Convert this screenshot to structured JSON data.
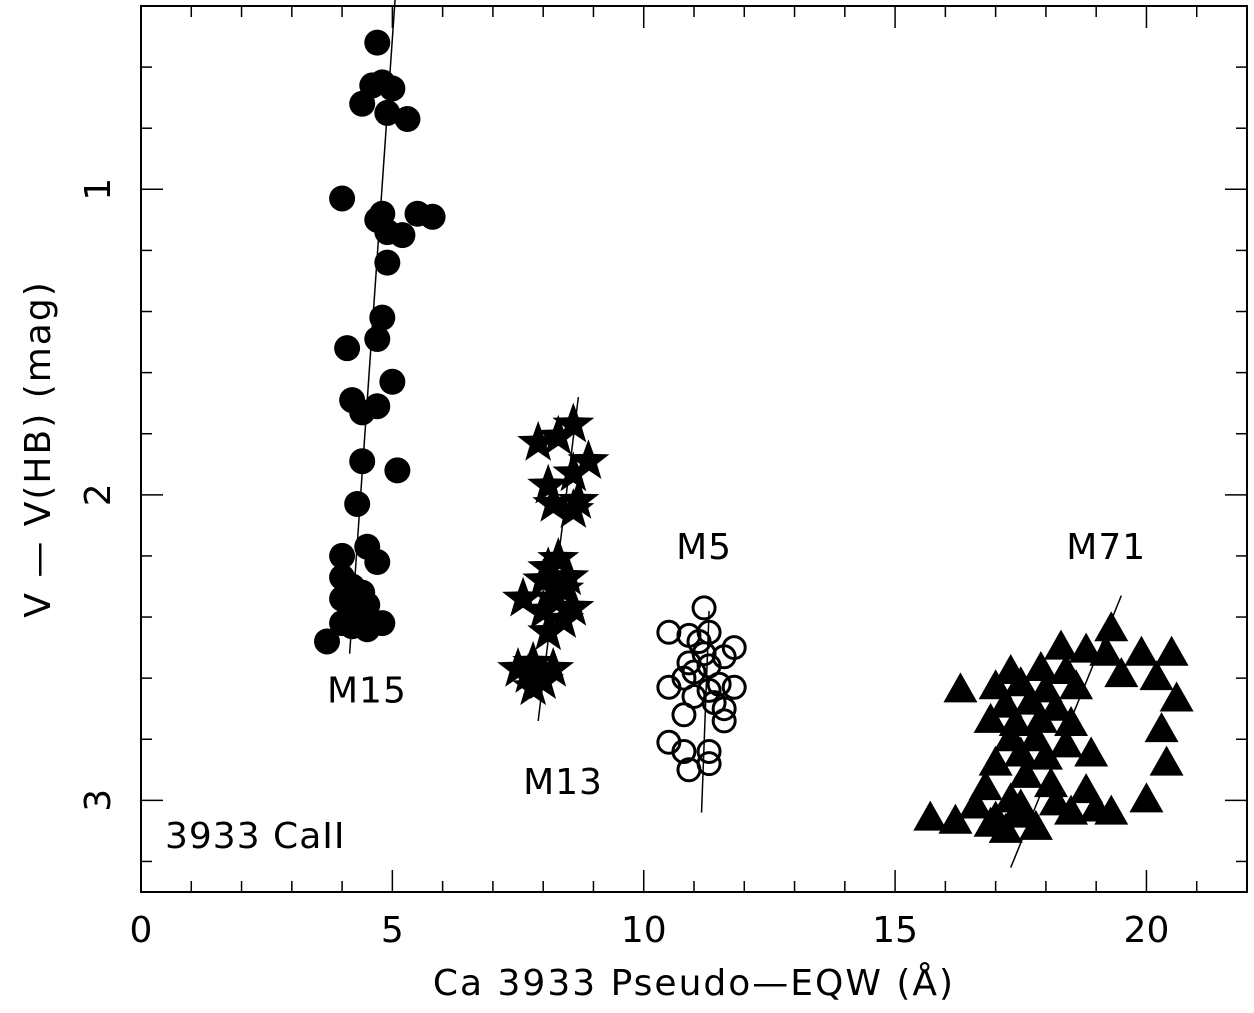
{
  "chart_data": {
    "type": "scatter",
    "xlabel": "Ca 3933 Pseudo—EQW (Å)",
    "ylabel": "V — V(HB) (mag)",
    "xlim": [
      0,
      22
    ],
    "ylim": [
      3.3,
      0.4
    ],
    "y_inverted": true,
    "x_ticks": [
      0,
      5,
      10,
      15,
      20
    ],
    "y_ticks": [
      1,
      2,
      3
    ],
    "panel_label": "3933 CaII",
    "series": [
      {
        "name": "M15",
        "marker": "filled-circle",
        "points": [
          [
            4.7,
            0.52
          ],
          [
            4.8,
            0.65
          ],
          [
            5.0,
            0.67
          ],
          [
            4.6,
            0.66
          ],
          [
            4.4,
            0.72
          ],
          [
            4.9,
            0.75
          ],
          [
            5.3,
            0.77
          ],
          [
            4.0,
            1.03
          ],
          [
            4.8,
            1.08
          ],
          [
            5.5,
            1.08
          ],
          [
            5.8,
            1.09
          ],
          [
            4.7,
            1.1
          ],
          [
            4.9,
            1.14
          ],
          [
            5.2,
            1.15
          ],
          [
            4.9,
            1.24
          ],
          [
            4.8,
            1.42
          ],
          [
            4.1,
            1.52
          ],
          [
            4.7,
            1.49
          ],
          [
            5.0,
            1.63
          ],
          [
            4.2,
            1.69
          ],
          [
            4.7,
            1.71
          ],
          [
            4.4,
            1.73
          ],
          [
            4.4,
            1.89
          ],
          [
            5.1,
            1.92
          ],
          [
            4.3,
            2.03
          ],
          [
            4.5,
            2.17
          ],
          [
            4.0,
            2.2
          ],
          [
            4.7,
            2.22
          ],
          [
            4.0,
            2.27
          ],
          [
            4.2,
            2.3
          ],
          [
            4.4,
            2.32
          ],
          [
            4.1,
            2.35
          ],
          [
            4.0,
            2.34
          ],
          [
            4.3,
            2.37
          ],
          [
            4.5,
            2.36
          ],
          [
            4.0,
            2.42
          ],
          [
            4.2,
            2.43
          ],
          [
            4.5,
            2.44
          ],
          [
            4.8,
            2.42
          ],
          [
            3.7,
            2.48
          ]
        ],
        "fit_line": [
          [
            4.15,
            2.52
          ],
          [
            5.1,
            0.27
          ]
        ]
      },
      {
        "name": "M13",
        "marker": "filled-star",
        "points": [
          [
            8.6,
            1.77
          ],
          [
            7.9,
            1.83
          ],
          [
            8.3,
            1.81
          ],
          [
            8.9,
            1.89
          ],
          [
            8.6,
            1.93
          ],
          [
            8.1,
            1.97
          ],
          [
            8.7,
            2.02
          ],
          [
            8.2,
            2.03
          ],
          [
            8.6,
            2.05
          ],
          [
            8.3,
            2.21
          ],
          [
            8.1,
            2.24
          ],
          [
            8.5,
            2.27
          ],
          [
            8.0,
            2.28
          ],
          [
            8.4,
            2.31
          ],
          [
            7.6,
            2.34
          ],
          [
            8.2,
            2.34
          ],
          [
            8.6,
            2.37
          ],
          [
            8.0,
            2.38
          ],
          [
            8.4,
            2.41
          ],
          [
            8.1,
            2.45
          ],
          [
            7.8,
            2.55
          ],
          [
            8.2,
            2.57
          ],
          [
            7.5,
            2.57
          ],
          [
            7.7,
            2.59
          ],
          [
            8.0,
            2.61
          ],
          [
            7.8,
            2.63
          ]
        ],
        "fit_line": [
          [
            7.9,
            2.74
          ],
          [
            8.7,
            1.68
          ]
        ]
      },
      {
        "name": "M5",
        "marker": "open-circle",
        "points": [
          [
            11.2,
            2.37
          ],
          [
            10.5,
            2.45
          ],
          [
            10.9,
            2.46
          ],
          [
            11.3,
            2.45
          ],
          [
            11.1,
            2.48
          ],
          [
            11.8,
            2.5
          ],
          [
            11.2,
            2.52
          ],
          [
            11.6,
            2.53
          ],
          [
            10.9,
            2.55
          ],
          [
            11.3,
            2.56
          ],
          [
            11.0,
            2.58
          ],
          [
            10.8,
            2.6
          ],
          [
            11.5,
            2.62
          ],
          [
            10.5,
            2.63
          ],
          [
            11.8,
            2.63
          ],
          [
            11.3,
            2.64
          ],
          [
            11.0,
            2.66
          ],
          [
            11.4,
            2.68
          ],
          [
            11.6,
            2.7
          ],
          [
            10.8,
            2.72
          ],
          [
            11.6,
            2.74
          ],
          [
            10.5,
            2.81
          ],
          [
            10.8,
            2.84
          ],
          [
            11.3,
            2.84
          ],
          [
            11.3,
            2.88
          ],
          [
            10.9,
            2.9
          ]
        ],
        "fit_line": [
          [
            11.15,
            3.04
          ],
          [
            11.3,
            2.38
          ]
        ]
      },
      {
        "name": "M71",
        "marker": "filled-triangle",
        "points": [
          [
            15.7,
            3.06
          ],
          [
            16.2,
            3.07
          ],
          [
            16.6,
            3.02
          ],
          [
            16.9,
            3.08
          ],
          [
            17.2,
            3.1
          ],
          [
            17.0,
            3.06
          ],
          [
            17.5,
            3.05
          ],
          [
            17.8,
            3.09
          ],
          [
            17.3,
            3.0
          ],
          [
            16.8,
            2.96
          ],
          [
            17.6,
            2.92
          ],
          [
            18.1,
            2.95
          ],
          [
            17.0,
            2.88
          ],
          [
            17.5,
            2.85
          ],
          [
            18.0,
            2.86
          ],
          [
            17.3,
            2.8
          ],
          [
            17.8,
            2.8
          ],
          [
            18.4,
            2.82
          ],
          [
            16.9,
            2.74
          ],
          [
            17.4,
            2.75
          ],
          [
            17.9,
            2.74
          ],
          [
            18.5,
            2.75
          ],
          [
            17.2,
            2.69
          ],
          [
            17.7,
            2.68
          ],
          [
            18.2,
            2.7
          ],
          [
            17.0,
            2.63
          ],
          [
            17.5,
            2.62
          ],
          [
            18.0,
            2.64
          ],
          [
            18.6,
            2.63
          ],
          [
            17.3,
            2.58
          ],
          [
            17.9,
            2.57
          ],
          [
            18.4,
            2.58
          ],
          [
            16.3,
            2.64
          ],
          [
            18.3,
            2.5
          ],
          [
            18.8,
            2.51
          ],
          [
            19.3,
            2.44
          ],
          [
            19.2,
            2.52
          ],
          [
            19.5,
            2.59
          ],
          [
            19.9,
            2.52
          ],
          [
            20.5,
            2.52
          ],
          [
            20.2,
            2.6
          ],
          [
            20.6,
            2.67
          ],
          [
            20.3,
            2.77
          ],
          [
            20.4,
            2.88
          ],
          [
            20.0,
            3.0
          ],
          [
            19.0,
            3.03
          ],
          [
            18.8,
            2.97
          ],
          [
            18.9,
            2.85
          ],
          [
            19.3,
            3.04
          ],
          [
            18.5,
            3.04
          ],
          [
            17.5,
            3.02
          ],
          [
            18.2,
            3.01
          ]
        ],
        "fit_line": [
          [
            17.3,
            3.22
          ],
          [
            19.5,
            2.33
          ]
        ]
      }
    ]
  }
}
